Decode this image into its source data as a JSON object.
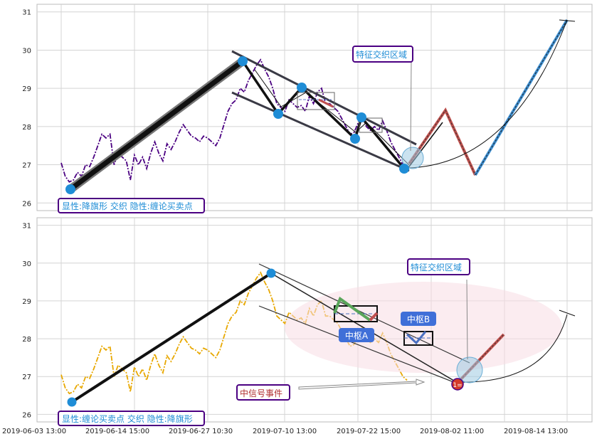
{
  "chart_data": [
    {
      "type": "line",
      "ylim": [
        25.8,
        31.2
      ],
      "yticks": [
        "26",
        "27",
        "28",
        "29",
        "30",
        "31"
      ],
      "series": [
        {
          "color": "#4b0082",
          "values": [
            27.05,
            26.7,
            26.55,
            26.6,
            26.8,
            26.7,
            27.0,
            26.95,
            27.2,
            27.5,
            27.8,
            27.7,
            27.8,
            27.0,
            27.3,
            27.2,
            27.1,
            26.6,
            27.25,
            27.0,
            27.2,
            26.9,
            27.3,
            27.6,
            27.3,
            27.1,
            27.55,
            27.4,
            27.6,
            27.85,
            28.05,
            27.9,
            27.75,
            27.7,
            27.6,
            27.75,
            27.7,
            27.6,
            27.5,
            27.7,
            28.05,
            28.4,
            28.6,
            28.7,
            29.0,
            28.9,
            29.2,
            29.4,
            29.6,
            29.75,
            29.5,
            29.3,
            29.0,
            28.6,
            28.5,
            28.4,
            28.7,
            28.6,
            28.5,
            28.55,
            28.4,
            28.8,
            28.6,
            28.9,
            29.0,
            28.6,
            28.6,
            28.5,
            28.4,
            28.2,
            28.0,
            27.8,
            27.85,
            28.1,
            28.3,
            28.0,
            27.9,
            28.0,
            27.9,
            28.15,
            27.9,
            27.6,
            27.4,
            27.2,
            27.0,
            26.9
          ],
          "x_start": 0.0,
          "x_end": 0.535
        }
      ],
      "legend": "none"
    },
    {
      "type": "line",
      "ylim": [
        25.8,
        31.2
      ],
      "yticks": [
        "26",
        "27",
        "28",
        "29",
        "30",
        "31"
      ],
      "xticks": [
        "2019-06-03 13:00",
        "2019-06-14 15:00",
        "2019-06-27 10:30",
        "2019-07-10 13:00",
        "2019-07-22 15:00",
        "2019-08-02 11:00",
        "2019-08-14 13:00"
      ],
      "series": [
        {
          "color": "#e8a800",
          "values": [
            27.05,
            26.7,
            26.55,
            26.6,
            26.8,
            26.7,
            27.0,
            26.95,
            27.2,
            27.5,
            27.8,
            27.7,
            27.8,
            27.0,
            27.3,
            27.2,
            27.1,
            26.6,
            27.25,
            27.0,
            27.2,
            26.9,
            27.3,
            27.6,
            27.3,
            27.1,
            27.55,
            27.4,
            27.6,
            27.85,
            28.05,
            27.9,
            27.75,
            27.7,
            27.6,
            27.75,
            27.7,
            27.6,
            27.5,
            27.7,
            28.05,
            28.4,
            28.6,
            28.7,
            29.0,
            28.9,
            29.2,
            29.4,
            29.6,
            29.75,
            29.5,
            29.3,
            29.0,
            28.6,
            28.5,
            28.4,
            28.7,
            28.6,
            28.5,
            28.55,
            28.4,
            28.8,
            28.6,
            28.9,
            29.0,
            28.6,
            28.6,
            28.5,
            28.4,
            28.2,
            28.0,
            27.8,
            27.85,
            28.1,
            28.3,
            28.0,
            27.9,
            28.0,
            27.9,
            28.15,
            27.9,
            27.6,
            27.4,
            27.2,
            27.0,
            26.9
          ],
          "x_start": 0.0,
          "x_end": 0.535
        }
      ],
      "legend": "none"
    }
  ],
  "annotations": {
    "top_label": "显性:降旗形 交织 隐性:缠论买卖点",
    "bottom_label": "显性:缠论买卖点 交织 隐性:降旗形",
    "feature_zone_top": "特征交织区域",
    "feature_zone_bottom": "特征交织区域",
    "zhongshu_a": "中枢A",
    "zhongshu_b": "中枢B",
    "signal_event": "中信号事件",
    "signal_marker": "1="
  }
}
